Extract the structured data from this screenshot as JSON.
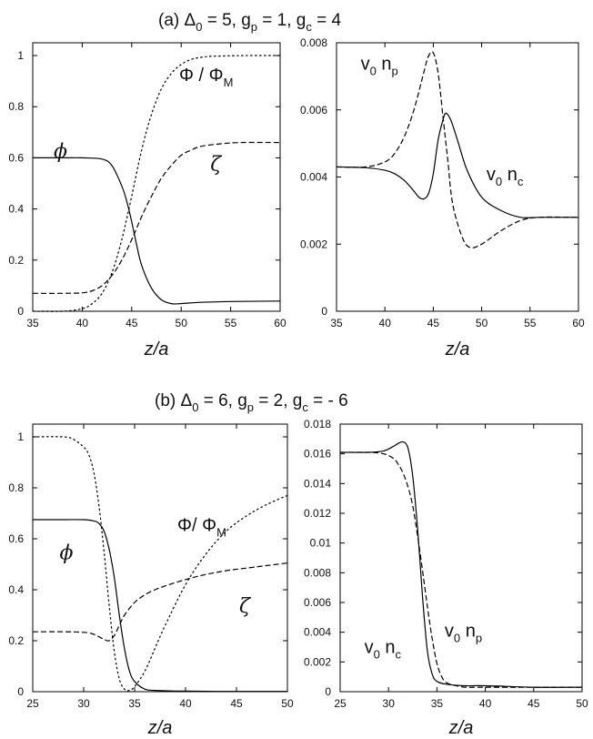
{
  "panel_a_title": {
    "prefix": "(a) ",
    "delta": "Δ",
    "delta_sub": "0",
    "delta_val": " = 5,  g",
    "gp_sub": "p",
    "gp_val": " = 1,   g",
    "gc_sub": "c",
    "gc_val": " = 4"
  },
  "panel_b_title": {
    "prefix": "(b) ",
    "delta": "Δ",
    "delta_sub": "0",
    "delta_val": " = 6,  g",
    "gp_sub": "p",
    "gp_val": " = 2,   g",
    "gc_sub": "c",
    "gc_val": " = - 6"
  },
  "chart_data": [
    {
      "id": "a-left",
      "type": "line",
      "xlabel": "z/a",
      "xlim": [
        35,
        60
      ],
      "ylim": [
        0,
        1.05
      ],
      "xticks": [
        "35",
        "40",
        "45",
        "50",
        "55",
        "60"
      ],
      "yticks": [
        "0",
        "0.2",
        "0.4",
        "0.6",
        "0.8",
        "1"
      ],
      "series": [
        {
          "name": "φ",
          "style": "solid",
          "x": [
            35,
            38,
            40,
            42,
            43,
            44,
            44.5,
            45,
            45.5,
            46,
            47,
            48,
            49,
            50,
            52,
            55,
            60
          ],
          "y": [
            0.6,
            0.6,
            0.6,
            0.595,
            0.57,
            0.49,
            0.43,
            0.35,
            0.26,
            0.18,
            0.09,
            0.045,
            0.03,
            0.03,
            0.035,
            0.038,
            0.04
          ]
        },
        {
          "name": "Φ / Φ",
          "name_sub": "M",
          "style": "dotted",
          "x": [
            35,
            38,
            40,
            41,
            42,
            43,
            44,
            45,
            46,
            47,
            48,
            49,
            50,
            51,
            52,
            53,
            55,
            57,
            60
          ],
          "y": [
            0,
            0,
            0.01,
            0.03,
            0.07,
            0.15,
            0.28,
            0.45,
            0.63,
            0.77,
            0.87,
            0.93,
            0.965,
            0.985,
            0.993,
            0.997,
            0.999,
            1.0,
            1.0
          ]
        },
        {
          "name": "ζ",
          "style": "dashed",
          "x": [
            35,
            38,
            40,
            41,
            42,
            43,
            44,
            45,
            46,
            47,
            48,
            49,
            50,
            51,
            52,
            54,
            56,
            60
          ],
          "y": [
            0.07,
            0.07,
            0.072,
            0.08,
            0.1,
            0.14,
            0.2,
            0.28,
            0.37,
            0.45,
            0.52,
            0.57,
            0.61,
            0.63,
            0.645,
            0.655,
            0.66,
            0.66
          ]
        }
      ],
      "labels": [
        {
          "key": "phi",
          "x": 37.8,
          "y": 0.6
        },
        {
          "key": "Phi",
          "x": 49.8,
          "y": 0.9
        },
        {
          "key": "zeta",
          "x": 53.5,
          "y": 0.55
        }
      ]
    },
    {
      "id": "a-right",
      "type": "line",
      "xlabel": "z/a",
      "xlim": [
        35,
        60
      ],
      "ylim": [
        0,
        0.008
      ],
      "xticks": [
        "35",
        "40",
        "45",
        "50",
        "55",
        "60"
      ],
      "yticks": [
        "0",
        "0.002",
        "0.004",
        "0.006",
        "0.008"
      ],
      "series": [
        {
          "name": "v0 nc",
          "style": "solid",
          "x": [
            35,
            38,
            40,
            41,
            42,
            43,
            43.5,
            44,
            44.5,
            45,
            45.5,
            46,
            46.3,
            46.8,
            47.5,
            48.5,
            50,
            52,
            54,
            56,
            60
          ],
          "y": [
            0.0043,
            0.00428,
            0.0042,
            0.0041,
            0.0039,
            0.00358,
            0.0034,
            0.00335,
            0.0035,
            0.0041,
            0.0051,
            0.0057,
            0.0059,
            0.0057,
            0.0051,
            0.0042,
            0.0034,
            0.003,
            0.0028,
            0.0028,
            0.0028
          ]
        },
        {
          "name": "v0 np",
          "style": "dashed",
          "x": [
            35,
            38,
            40,
            41,
            42,
            43,
            44,
            44.5,
            45,
            45.5,
            46,
            46.5,
            47,
            48,
            48.8,
            50,
            52,
            54,
            56,
            60
          ],
          "y": [
            0.0043,
            0.0043,
            0.00445,
            0.0047,
            0.0052,
            0.006,
            0.0071,
            0.0076,
            0.0077,
            0.0071,
            0.0058,
            0.0045,
            0.0032,
            0.0022,
            0.0019,
            0.002,
            0.0024,
            0.0027,
            0.0028,
            0.0028
          ]
        }
      ],
      "labels": [
        {
          "key": "v0np_a",
          "x": 37.5,
          "y": 0.0072
        },
        {
          "key": "v0nc_a",
          "x": 50.5,
          "y": 0.0039
        }
      ]
    },
    {
      "id": "b-left",
      "type": "line",
      "xlabel": "z/a",
      "xlim": [
        25,
        50
      ],
      "ylim": [
        0,
        1.05
      ],
      "xticks": [
        "25",
        "30",
        "35",
        "40",
        "45",
        "50"
      ],
      "yticks": [
        "0",
        "0.2",
        "0.4",
        "0.6",
        "0.8",
        "1"
      ],
      "series": [
        {
          "name": "φ",
          "style": "solid",
          "x": [
            25,
            28,
            30,
            31,
            31.5,
            32,
            32.5,
            33,
            33.5,
            34,
            34.5,
            35,
            36,
            37,
            40,
            45,
            50
          ],
          "y": [
            0.675,
            0.675,
            0.675,
            0.67,
            0.66,
            0.63,
            0.56,
            0.45,
            0.3,
            0.17,
            0.08,
            0.04,
            0.01,
            0.005,
            0.002,
            0.001,
            0.001
          ]
        },
        {
          "name": "Φ/ Φ",
          "name_sub": "M",
          "style": "dotted",
          "x": [
            25,
            28,
            29,
            30,
            30.5,
            31,
            31.5,
            32,
            32.5,
            33,
            33.5,
            34,
            34.5,
            35,
            36,
            37,
            38,
            40,
            42,
            44,
            46,
            48,
            50
          ],
          "y": [
            1.0,
            1.0,
            0.99,
            0.96,
            0.93,
            0.86,
            0.73,
            0.55,
            0.34,
            0.16,
            0.05,
            0.01,
            0.005,
            0.02,
            0.08,
            0.17,
            0.26,
            0.42,
            0.54,
            0.63,
            0.69,
            0.735,
            0.77
          ]
        },
        {
          "name": "ζ",
          "style": "dashed",
          "x": [
            25,
            28,
            30,
            31,
            32,
            32.5,
            33,
            33.5,
            34,
            35,
            36,
            37,
            38,
            40,
            42,
            44,
            46,
            48,
            50
          ],
          "y": [
            0.235,
            0.235,
            0.233,
            0.225,
            0.205,
            0.2,
            0.22,
            0.26,
            0.3,
            0.35,
            0.38,
            0.4,
            0.415,
            0.44,
            0.46,
            0.475,
            0.485,
            0.495,
            0.505
          ]
        }
      ],
      "labels": [
        {
          "key": "phi",
          "x": 28.3,
          "y": 0.52
        },
        {
          "key": "Phi",
          "x": 39.2,
          "y": 0.63
        },
        {
          "key": "zeta",
          "x": 45.8,
          "y": 0.31
        }
      ]
    },
    {
      "id": "b-right",
      "type": "line",
      "xlabel": "z/a",
      "xlim": [
        25,
        50
      ],
      "ylim": [
        0,
        0.018
      ],
      "xticks": [
        "25",
        "30",
        "35",
        "40",
        "45",
        "50"
      ],
      "yticks": [
        "0",
        "0.002",
        "0.004",
        "0.006",
        "0.008",
        "0.01",
        "0.012",
        "0.014",
        "0.016",
        "0.018"
      ],
      "series": [
        {
          "name": "v0 nc",
          "style": "solid",
          "x": [
            25,
            28,
            29.5,
            30.5,
            31,
            31.5,
            32,
            32.5,
            33,
            33.5,
            34,
            34.5,
            35,
            36,
            38,
            40,
            45,
            50
          ],
          "y": [
            0.0161,
            0.0161,
            0.0162,
            0.0165,
            0.0167,
            0.0168,
            0.0164,
            0.0145,
            0.011,
            0.0065,
            0.0028,
            0.0012,
            0.0007,
            0.0005,
            0.0004,
            0.0004,
            0.0003,
            0.0003
          ]
        },
        {
          "name": "v0 np",
          "style": "dashed",
          "x": [
            25,
            28,
            29.5,
            30.5,
            31,
            31.5,
            32,
            32.5,
            33,
            33.5,
            34,
            34.5,
            35,
            35.5,
            36,
            37,
            38,
            40,
            45,
            50
          ],
          "y": [
            0.0161,
            0.0161,
            0.016,
            0.0157,
            0.0153,
            0.0147,
            0.0138,
            0.0125,
            0.0105,
            0.0082,
            0.0058,
            0.0036,
            0.0019,
            0.001,
            0.0006,
            0.0004,
            0.0003,
            0.0003,
            0.0003,
            0.0003
          ]
        }
      ],
      "labels": [
        {
          "key": "v0nc_b",
          "x": 27.5,
          "y": 0.0026
        },
        {
          "key": "v0np_b",
          "x": 35.8,
          "y": 0.0037
        }
      ]
    }
  ],
  "annotations": {
    "phi": "ϕ",
    "zeta": "ζ",
    "Phi_a": {
      "main": "Φ / Φ",
      "sub": "M"
    },
    "Phi_b": {
      "main": "Φ/ Φ",
      "sub": "M"
    },
    "v0np_a": {
      "v": "v",
      "vsub": "0",
      "n": " n",
      "nsub": "p"
    },
    "v0nc_a": {
      "v": "v",
      "vsub": "0",
      "n": " n",
      "nsub": "c"
    },
    "v0nc_b": {
      "v": "v",
      "vsub": "0",
      "n": " n",
      "nsub": "c"
    },
    "v0np_b": {
      "v": "v",
      "vsub": "0",
      "n": " n",
      "nsub": "p"
    }
  }
}
